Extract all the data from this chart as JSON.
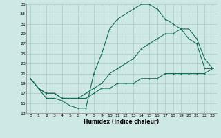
{
  "xlabel": "Humidex (Indice chaleur)",
  "xlim": [
    -0.5,
    23.5
  ],
  "ylim": [
    13,
    35
  ],
  "xticks": [
    0,
    1,
    2,
    3,
    4,
    5,
    6,
    7,
    8,
    9,
    10,
    11,
    12,
    13,
    14,
    15,
    16,
    17,
    18,
    19,
    20,
    21,
    22,
    23
  ],
  "yticks": [
    13,
    15,
    17,
    19,
    21,
    23,
    25,
    27,
    29,
    31,
    33,
    35
  ],
  "bg_color": "#cde8e5",
  "grid_color": "#aecfcc",
  "line_color": "#1a6b5a",
  "line1_x": [
    0,
    1,
    2,
    3,
    4,
    5,
    6,
    7,
    8,
    9,
    10,
    11,
    12,
    13,
    14,
    15,
    16,
    17,
    18,
    19,
    20,
    21,
    22,
    23
  ],
  "line1_y": [
    20,
    18,
    16,
    16,
    15.5,
    14.5,
    14,
    14,
    21,
    25,
    30,
    32,
    33,
    34,
    35,
    35,
    34,
    32,
    31,
    30,
    28,
    27,
    22,
    22
  ],
  "line2_x": [
    0,
    1,
    2,
    3,
    4,
    5,
    6,
    7,
    8,
    9,
    10,
    11,
    12,
    13,
    14,
    15,
    16,
    17,
    18,
    19,
    20,
    21,
    22,
    23
  ],
  "line2_y": [
    20,
    18,
    17,
    17,
    16,
    16,
    16,
    17,
    18,
    19,
    21,
    22,
    23,
    24,
    26,
    27,
    28,
    29,
    29,
    30,
    30,
    28,
    24,
    22
  ],
  "line3_x": [
    0,
    1,
    2,
    3,
    4,
    5,
    6,
    7,
    8,
    9,
    10,
    11,
    12,
    13,
    14,
    15,
    16,
    17,
    18,
    19,
    20,
    21,
    22,
    23
  ],
  "line3_y": [
    20,
    18,
    17,
    17,
    16,
    16,
    16,
    16,
    17,
    18,
    18,
    19,
    19,
    19,
    20,
    20,
    20,
    21,
    21,
    21,
    21,
    21,
    21,
    22
  ]
}
